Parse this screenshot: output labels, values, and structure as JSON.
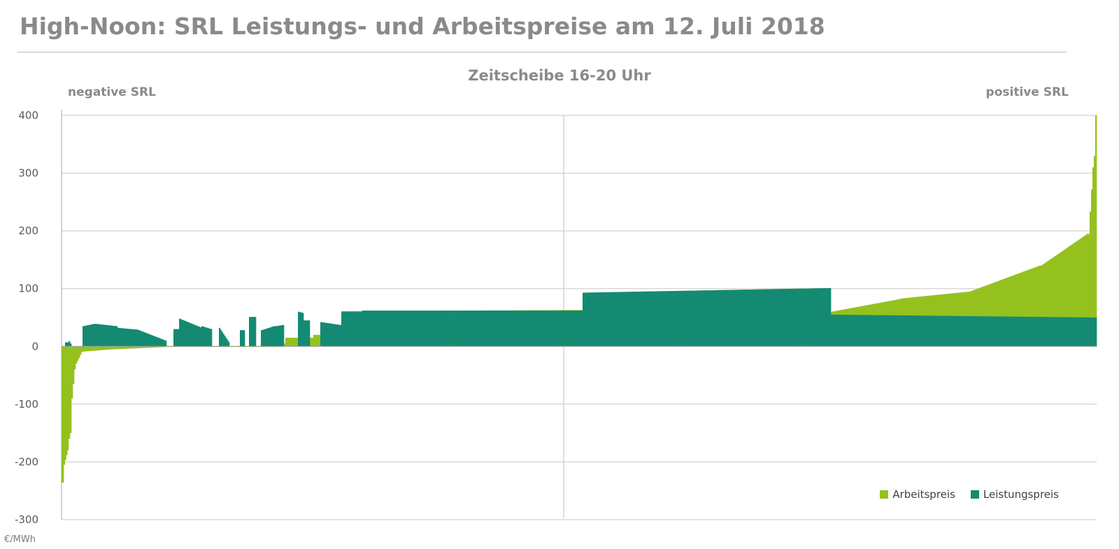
{
  "title": "High-Noon: SRL Leistungs- und Arbeitspreise am 12. Juli 2018",
  "chart_data": {
    "type": "bar",
    "title": "High-Noon: SRL Leistungs- und Arbeitspreise am 12. Juli 2018",
    "subtitle": "Zeitscheibe 16-20 Uhr",
    "annotations": {
      "left": "negative SRL",
      "right": "positive SRL"
    },
    "ylabel": "€/MWh",
    "ylim": [
      -300,
      400
    ],
    "yticks": [
      -300,
      -200,
      -100,
      0,
      100,
      200,
      300,
      400
    ],
    "grid": true,
    "legend_position": "bottom-right",
    "series": [
      {
        "name": "Arbeitspreis",
        "color": "#95c11f",
        "segments": [
          {
            "start": 0,
            "end": 3,
            "from": -236,
            "to": -236
          },
          {
            "start": 3,
            "end": 10,
            "from": -205,
            "to": -180
          },
          {
            "start": 10,
            "end": 14,
            "from": -160,
            "to": -150
          },
          {
            "start": 14,
            "end": 20,
            "from": -90,
            "to": -40
          },
          {
            "start": 20,
            "end": 30,
            "from": -30,
            "to": -10
          },
          {
            "start": 30,
            "end": 75,
            "from": -9,
            "to": -5
          },
          {
            "start": 75,
            "end": 150,
            "from": -5,
            "to": -1
          },
          {
            "start": 150,
            "end": 315,
            "from": 0,
            "to": 0
          },
          {
            "start": 315,
            "end": 320,
            "from": 5,
            "to": 5
          },
          {
            "start": 320,
            "end": 360,
            "from": 15,
            "to": 15
          },
          {
            "start": 360,
            "end": 400,
            "from": 20,
            "to": 20
          },
          {
            "start": 400,
            "end": 745,
            "from": 61,
            "to": 63
          },
          {
            "start": 745,
            "end": 1100,
            "from": 93,
            "to": 101
          },
          {
            "start": 1100,
            "end": 1200,
            "from": 60,
            "to": 82
          },
          {
            "start": 1200,
            "end": 1300,
            "from": 83,
            "to": 95
          },
          {
            "start": 1300,
            "end": 1400,
            "from": 96,
            "to": 140
          },
          {
            "start": 1400,
            "end": 1468,
            "from": 140,
            "to": 195
          },
          {
            "start": 1468,
            "end": 1476,
            "from": 195,
            "to": 310
          },
          {
            "start": 1476,
            "end": 1480,
            "from": 330,
            "to": 400
          }
        ]
      },
      {
        "name": "Leistungspreis",
        "color": "#148a73",
        "segments": [
          {
            "start": 5,
            "end": 10,
            "from": 7,
            "to": 7
          },
          {
            "start": 10,
            "end": 14,
            "from": 9,
            "to": 5
          },
          {
            "start": 30,
            "end": 48,
            "from": 35,
            "to": 39
          },
          {
            "start": 48,
            "end": 80,
            "from": 39,
            "to": 35
          },
          {
            "start": 80,
            "end": 110,
            "from": 32,
            "to": 29
          },
          {
            "start": 110,
            "end": 150,
            "from": 28,
            "to": 10
          },
          {
            "start": 160,
            "end": 168,
            "from": 30,
            "to": 30
          },
          {
            "start": 168,
            "end": 200,
            "from": 48,
            "to": 33
          },
          {
            "start": 200,
            "end": 215,
            "from": 35,
            "to": 30
          },
          {
            "start": 225,
            "end": 240,
            "from": 32,
            "to": 8
          },
          {
            "start": 255,
            "end": 262,
            "from": 28,
            "to": 28
          },
          {
            "start": 268,
            "end": 278,
            "from": 51,
            "to": 51
          },
          {
            "start": 285,
            "end": 305,
            "from": 28,
            "to": 35
          },
          {
            "start": 305,
            "end": 318,
            "from": 35,
            "to": 37
          },
          {
            "start": 338,
            "end": 346,
            "from": 60,
            "to": 58
          },
          {
            "start": 346,
            "end": 355,
            "from": 45,
            "to": 45
          },
          {
            "start": 370,
            "end": 400,
            "from": 42,
            "to": 37
          },
          {
            "start": 400,
            "end": 430,
            "from": 60,
            "to": 60
          },
          {
            "start": 430,
            "end": 745,
            "from": 62,
            "to": 62
          },
          {
            "start": 745,
            "end": 1100,
            "from": 93,
            "to": 101
          },
          {
            "start": 1100,
            "end": 1480,
            "from": 55,
            "to": 50
          }
        ]
      }
    ]
  }
}
